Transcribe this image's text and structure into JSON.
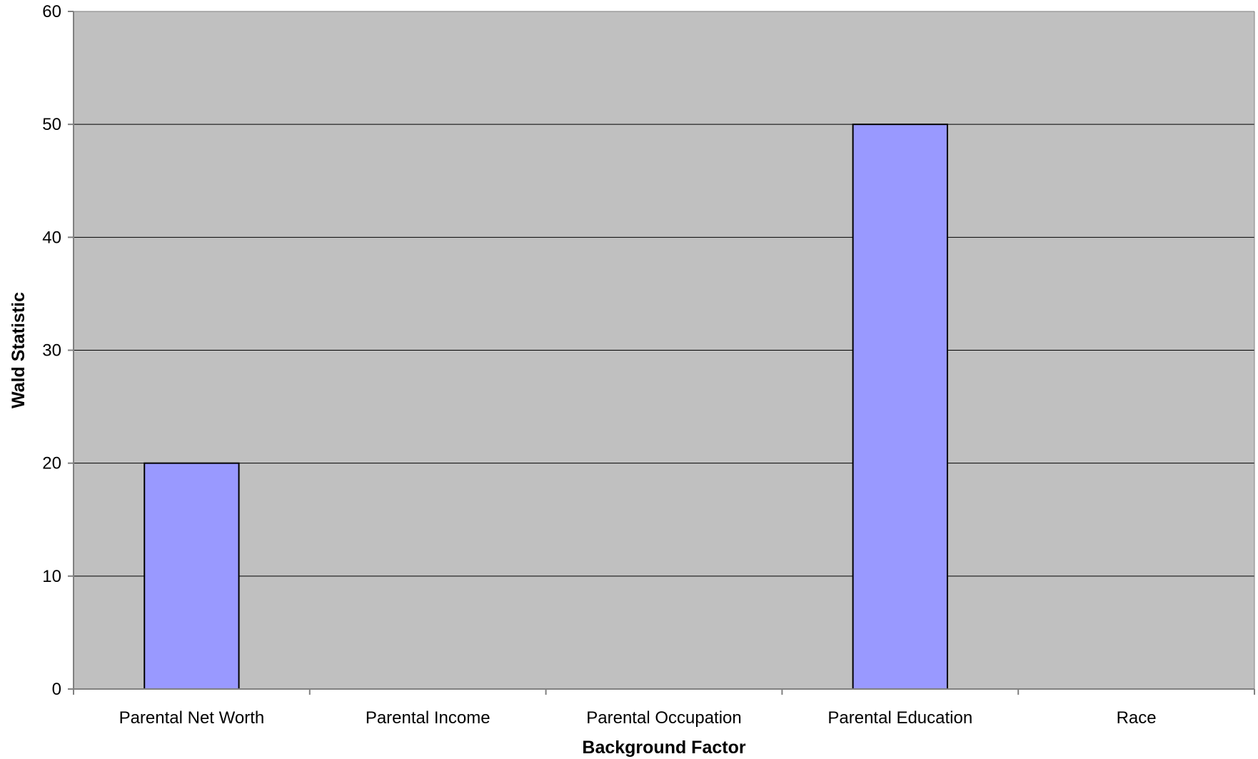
{
  "chart_data": {
    "type": "bar",
    "title": "",
    "xlabel": "Background Factor",
    "ylabel": "Wald Statistic",
    "categories": [
      "Parental Net Worth",
      "Parental Income",
      "Parental Occupation",
      "Parental Education",
      "Race"
    ],
    "values": [
      20,
      0,
      0,
      50,
      0
    ],
    "ylim": [
      0,
      60
    ],
    "yticks": [
      0,
      10,
      20,
      30,
      40,
      50,
      60
    ],
    "grid": true,
    "legend": "none",
    "colors": {
      "plot_background": "#c0c0c0",
      "bar_fill": "#9999ff",
      "bar_stroke": "#000000",
      "gridline": "#000000",
      "axis": "#808080"
    }
  }
}
